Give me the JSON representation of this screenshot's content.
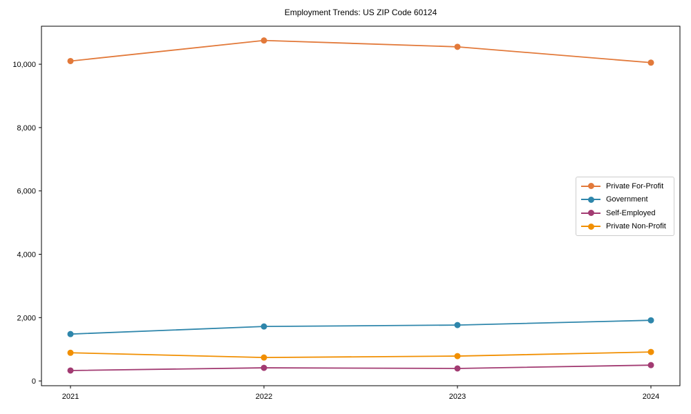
{
  "chart_data": {
    "type": "line",
    "title": "Employment Trends: US ZIP Code 60124",
    "categories": [
      "2021",
      "2022",
      "2023",
      "2024"
    ],
    "x": [
      2021,
      2022,
      2023,
      2024
    ],
    "series": [
      {
        "name": "Private For-Profit",
        "color": "#E2793A",
        "values": [
          10100,
          10750,
          10550,
          10050
        ]
      },
      {
        "name": "Government",
        "color": "#2E86AB",
        "values": [
          1480,
          1720,
          1765,
          1915
        ]
      },
      {
        "name": "Self-Employed",
        "color": "#A23B72",
        "values": [
          330,
          415,
          395,
          500
        ]
      },
      {
        "name": "Private Non-Profit",
        "color": "#F18F01",
        "values": [
          890,
          740,
          785,
          915
        ]
      }
    ],
    "xlabel": "",
    "ylabel": "",
    "xlim": [
      2020.85,
      2024.15
    ],
    "ylim": [
      -150,
      11200
    ],
    "yticks": [
      0,
      2000,
      4000,
      6000,
      8000,
      10000
    ],
    "ytick_labels": [
      "0",
      "2,000",
      "4,000",
      "6,000",
      "8,000",
      "10,000"
    ],
    "grid": false,
    "marker": "circle",
    "axis_color": "#000000",
    "legend": {
      "position": "right",
      "border_color": "#cccccc",
      "background": "#ffffff"
    }
  }
}
